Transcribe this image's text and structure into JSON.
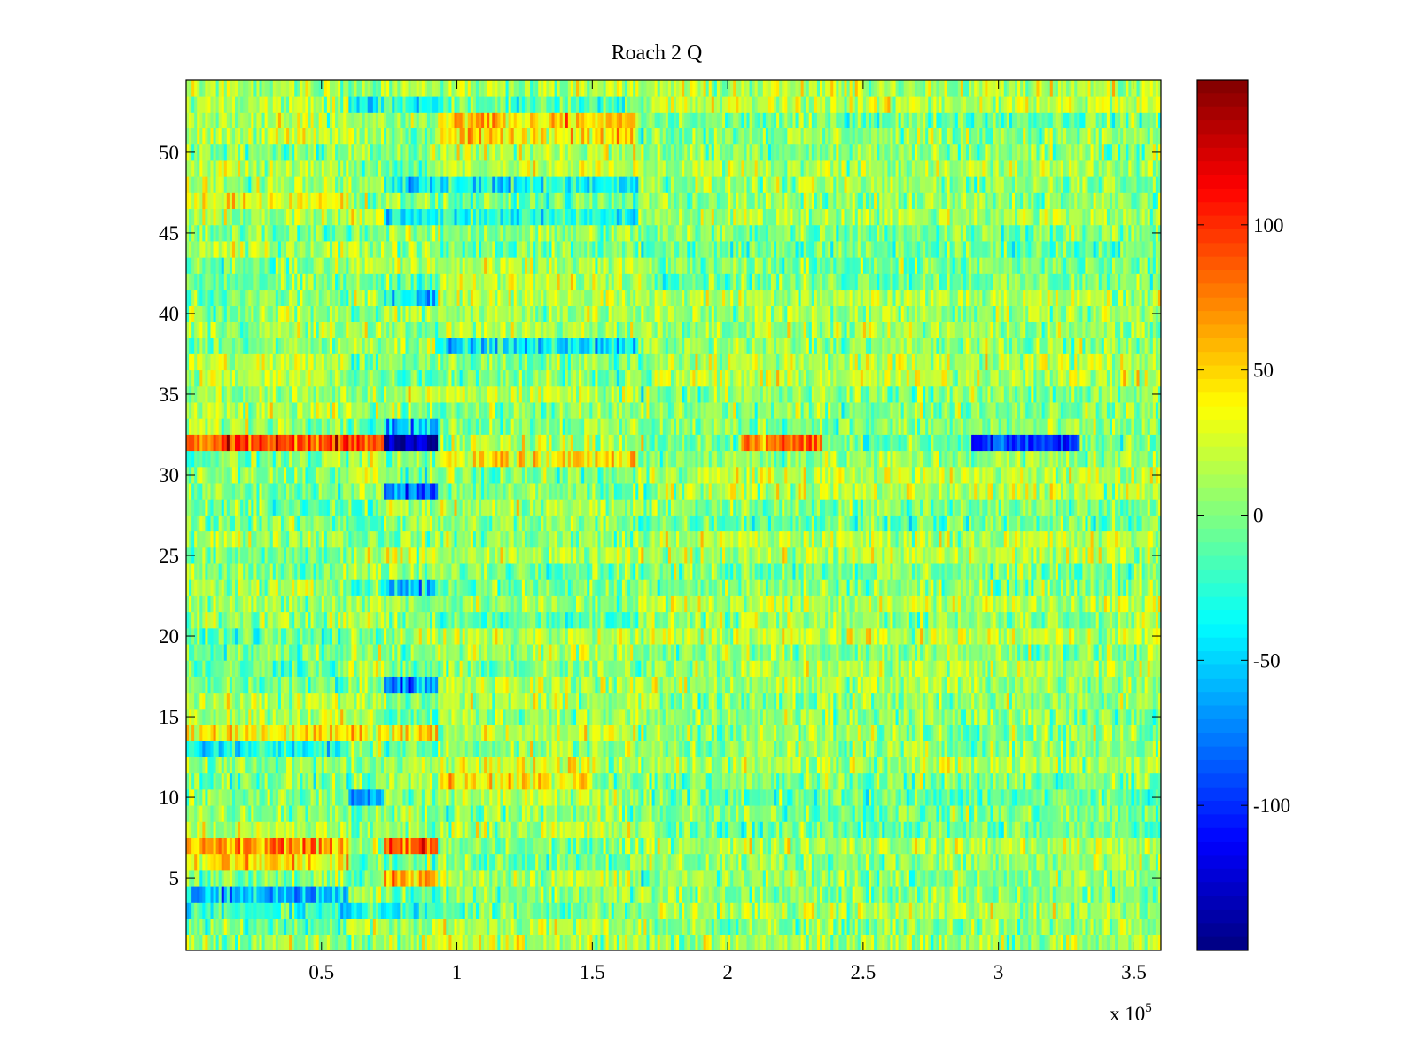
{
  "chart_data": {
    "type": "heatmap",
    "title": "Roach 2 Q",
    "xlabel": "",
    "ylabel": "",
    "x_multiplier_label": "x 10",
    "x_multiplier_exponent": "5",
    "x_range": [
      0,
      3.6
    ],
    "y_range": [
      0.5,
      54.5
    ],
    "x_ticks": [
      0.5,
      1,
      1.5,
      2,
      2.5,
      3,
      3.5
    ],
    "x_tick_labels": [
      "0.5",
      "1",
      "1.5",
      "2",
      "2.5",
      "3",
      "3.5"
    ],
    "y_ticks": [
      5,
      10,
      15,
      20,
      25,
      30,
      35,
      40,
      45,
      50
    ],
    "y_tick_labels": [
      "5",
      "10",
      "15",
      "20",
      "25",
      "30",
      "35",
      "40",
      "45",
      "50"
    ],
    "rows": 54,
    "colormap": "jet",
    "color_range": [
      -150,
      150
    ],
    "colorbar_ticks": [
      100,
      50,
      0,
      -50,
      -100
    ],
    "colorbar_tick_labels": [
      "100",
      "50",
      "0",
      "-50",
      "-100"
    ],
    "baseline_value": 5,
    "noise_amplitude": 18,
    "column_segments_x": [
      0,
      0.6,
      0.73,
      0.93,
      1.67,
      1.72,
      3.6
    ],
    "features": [
      {
        "row": 32,
        "x0": 0.0,
        "x1": 0.73,
        "value": 90
      },
      {
        "row": 32,
        "x0": 0.73,
        "x1": 0.93,
        "value": -140
      },
      {
        "row": 32,
        "x0": 0.93,
        "x1": 1.7,
        "value": 15
      },
      {
        "row": 32,
        "x0": 2.05,
        "x1": 2.35,
        "value": 80
      },
      {
        "row": 32,
        "x0": 2.9,
        "x1": 3.3,
        "value": -95
      },
      {
        "row": 33,
        "x0": 0.73,
        "x1": 0.93,
        "value": -60
      },
      {
        "row": 31,
        "x0": 0.93,
        "x1": 1.67,
        "value": 45
      },
      {
        "row": 29,
        "x0": 0.73,
        "x1": 0.93,
        "value": -75
      },
      {
        "row": 7,
        "x0": 0.0,
        "x1": 0.6,
        "value": 60
      },
      {
        "row": 7,
        "x0": 0.73,
        "x1": 0.93,
        "value": 85
      },
      {
        "row": 6,
        "x0": 0.0,
        "x1": 0.6,
        "value": 45
      },
      {
        "row": 5,
        "x0": 0.73,
        "x1": 0.93,
        "value": 65
      },
      {
        "row": 4,
        "x0": 0.0,
        "x1": 0.6,
        "value": -55
      },
      {
        "row": 3,
        "x0": 0.0,
        "x1": 0.93,
        "value": -30
      },
      {
        "row": 10,
        "x0": 0.6,
        "x1": 0.73,
        "value": -60
      },
      {
        "row": 11,
        "x0": 0.93,
        "x1": 1.5,
        "value": 40
      },
      {
        "row": 12,
        "x0": 0.93,
        "x1": 1.5,
        "value": 30
      },
      {
        "row": 13,
        "x0": 0.0,
        "x1": 0.6,
        "value": -35
      },
      {
        "row": 14,
        "x0": 0.0,
        "x1": 0.93,
        "value": 40
      },
      {
        "row": 17,
        "x0": 0.73,
        "x1": 0.93,
        "value": -70
      },
      {
        "row": 23,
        "x0": 0.73,
        "x1": 0.93,
        "value": -45
      },
      {
        "row": 38,
        "x0": 0.93,
        "x1": 1.67,
        "value": -45
      },
      {
        "row": 41,
        "x0": 0.73,
        "x1": 0.93,
        "value": -40
      },
      {
        "row": 46,
        "x0": 0.73,
        "x1": 1.67,
        "value": -30
      },
      {
        "row": 47,
        "x0": 0.0,
        "x1": 0.6,
        "value": 30
      },
      {
        "row": 48,
        "x0": 0.73,
        "x1": 1.67,
        "value": -35
      },
      {
        "row": 51,
        "x0": 0.93,
        "x1": 1.67,
        "value": 45
      },
      {
        "row": 52,
        "x0": 0.93,
        "x1": 1.67,
        "value": 50
      },
      {
        "row": 53,
        "x0": 0.6,
        "x1": 0.93,
        "value": -30
      }
    ]
  }
}
